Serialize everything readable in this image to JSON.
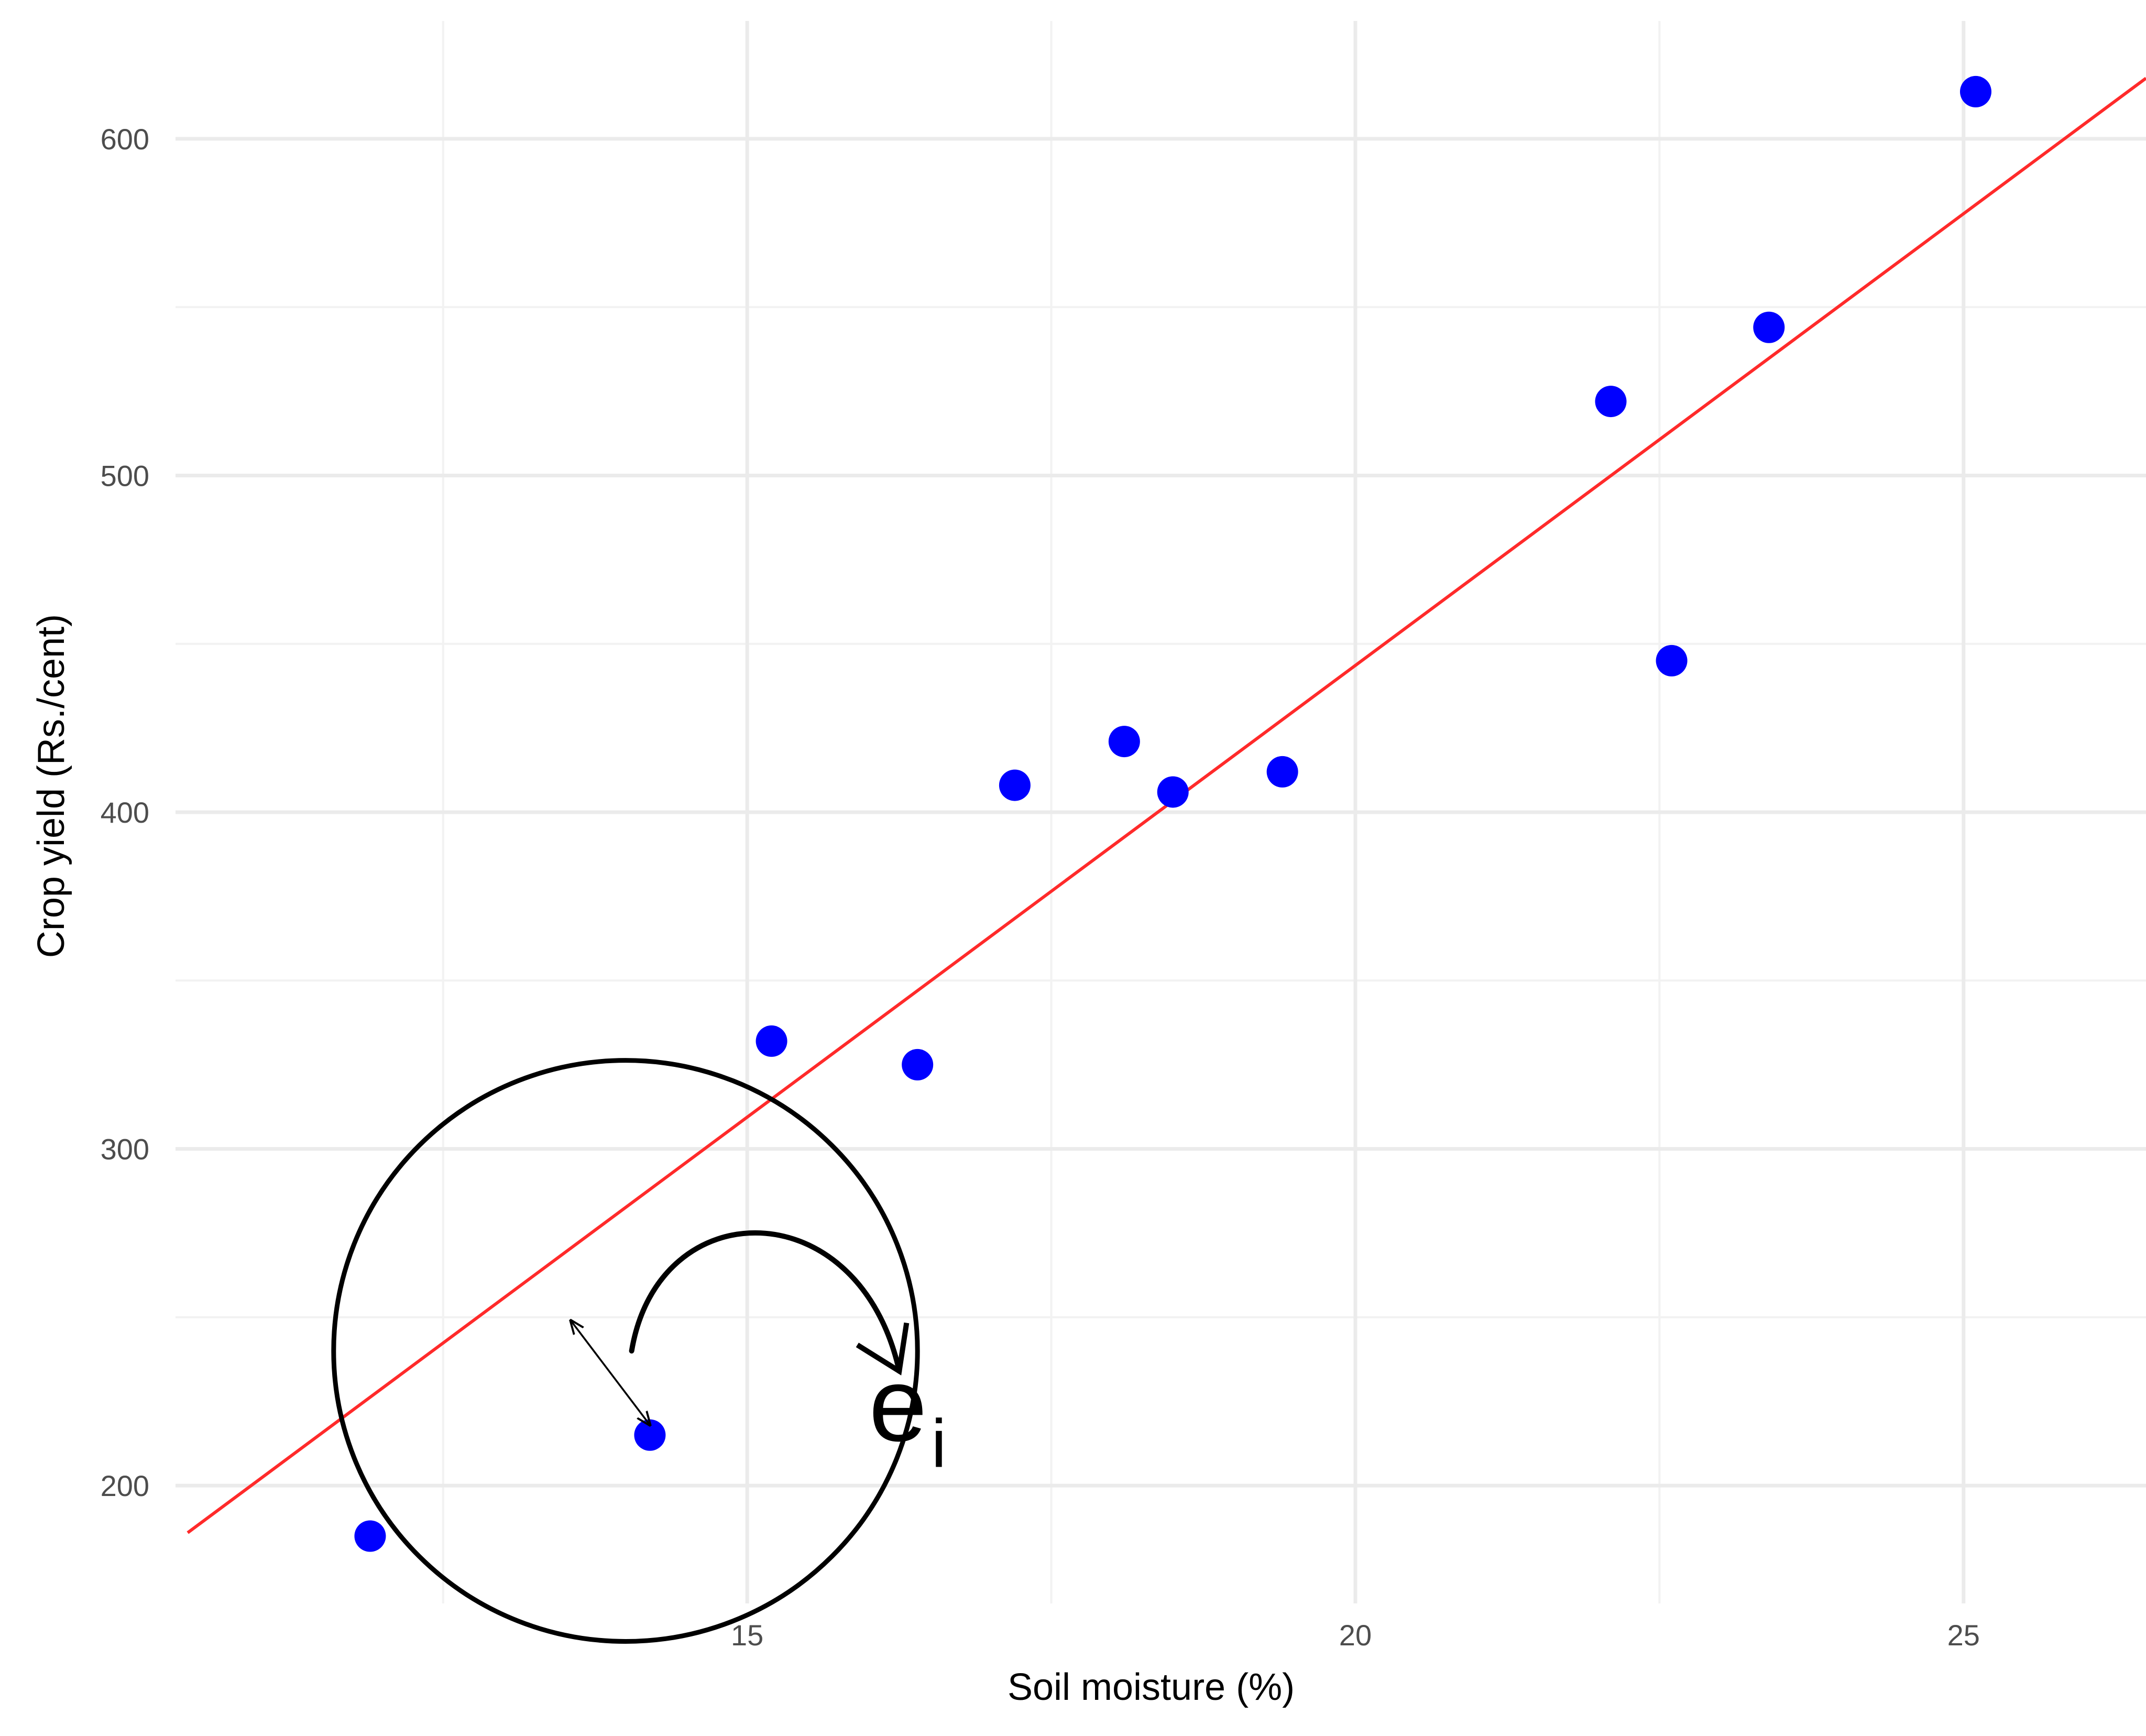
{
  "chart_data": {
    "type": "scatter",
    "xlabel": "Soil moisture (%)",
    "ylabel": "Crop yield (Rs./cent)",
    "xlim": [
      10.3,
      26.5
    ],
    "ylim": [
      165,
      635
    ],
    "x_ticks": [
      15,
      20,
      25
    ],
    "x_tick_labels": [
      "15",
      "20",
      "25"
    ],
    "x_minor_ticks": [
      12.5,
      17.5,
      22.5
    ],
    "y_ticks": [
      200,
      300,
      400,
      500,
      600
    ],
    "y_tick_labels": [
      "200",
      "300",
      "400",
      "500",
      "600"
    ],
    "y_minor_ticks": [
      250,
      350,
      450,
      550
    ],
    "grid": true,
    "legend": "none",
    "point_color": "#0000ff",
    "line_color": "#ff2a2a",
    "points": [
      {
        "x": 11.9,
        "y": 185
      },
      {
        "x": 14.2,
        "y": 215
      },
      {
        "x": 15.2,
        "y": 332
      },
      {
        "x": 16.4,
        "y": 325
      },
      {
        "x": 17.2,
        "y": 408
      },
      {
        "x": 18.1,
        "y": 421
      },
      {
        "x": 18.5,
        "y": 406
      },
      {
        "x": 19.4,
        "y": 412
      },
      {
        "x": 22.1,
        "y": 522
      },
      {
        "x": 22.6,
        "y": 445
      },
      {
        "x": 23.4,
        "y": 544
      },
      {
        "x": 25.1,
        "y": 614
      }
    ],
    "fit_line": {
      "x": [
        10.4,
        26.5
      ],
      "y": [
        186,
        618
      ]
    },
    "annotations": [
      {
        "text": "e",
        "subscript": "i",
        "x": 16.0,
        "y": 218,
        "circle_center": {
          "x": 14.0,
          "y": 240
        },
        "circle_radius_x": 2.4,
        "residual_from": {
          "x": 13.55,
          "y": 249
        },
        "residual_to": {
          "x": 14.2,
          "y": 218
        },
        "curved_arrow_from": {
          "x": 14.05,
          "y": 240
        },
        "curved_arrow_to": {
          "x": 16.25,
          "y": 234
        }
      }
    ]
  }
}
